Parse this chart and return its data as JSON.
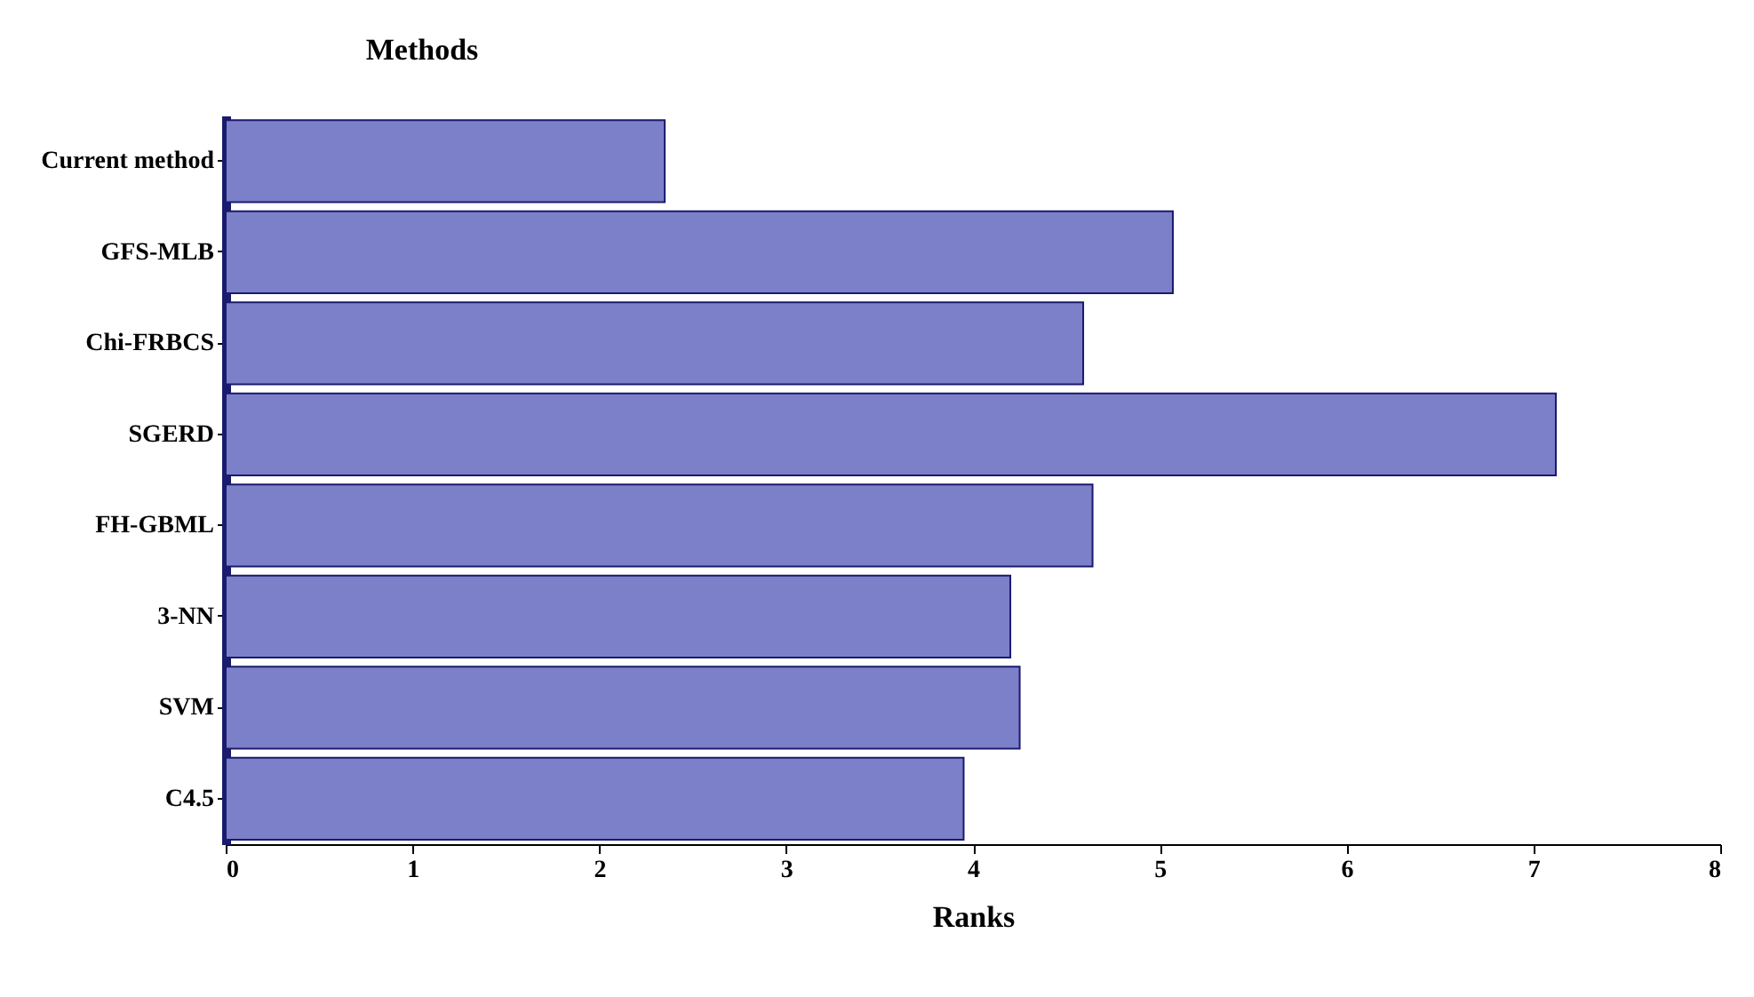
{
  "chart_data": {
    "type": "bar",
    "orientation": "horizontal",
    "ylabel": "Methods",
    "xlabel": "Ranks",
    "categories": [
      "Current method",
      "GFS-MLB",
      "Chi-FRBCS",
      "SGERD",
      "FH-GBML",
      "3-NN",
      "SVM",
      "C4.5"
    ],
    "values": [
      2.35,
      5.07,
      4.59,
      7.12,
      4.64,
      4.2,
      4.25,
      3.95
    ],
    "color": "#7c80c8",
    "xlim": [
      0,
      8
    ],
    "xticks": [
      0,
      1,
      2,
      3,
      4,
      5,
      6,
      7,
      8
    ],
    "grid": false
  }
}
